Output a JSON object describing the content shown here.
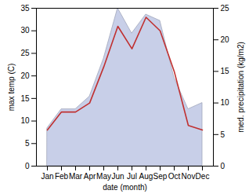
{
  "chart_data": {
    "type": "line",
    "categories": [
      "Jan",
      "Feb",
      "Mar",
      "Apr",
      "May",
      "Jun",
      "Jul",
      "Aug",
      "Sep",
      "Oct",
      "Nov",
      "Dec"
    ],
    "series": [
      {
        "type": "area",
        "color": "#c8cfe8",
        "axis": "y2",
        "values": [
          6,
          9,
          9,
          11,
          17,
          25,
          21,
          24,
          23,
          14,
          9,
          10
        ]
      },
      {
        "type": "line",
        "color": "#c03030",
        "values": [
          8,
          12,
          12,
          14,
          22,
          31,
          26,
          33,
          30,
          21,
          9,
          8
        ]
      }
    ],
    "xlabel": "date (month)",
    "ylabel": "max temp (C)",
    "y2label": "med. precipitation (kg/m2)",
    "ylim": [
      0,
      35
    ],
    "yticks": [
      0,
      5,
      10,
      15,
      20,
      25,
      30,
      35
    ],
    "y2lim": [
      0,
      25
    ],
    "y2ticks": [
      0,
      5,
      10,
      15,
      20,
      25
    ]
  }
}
